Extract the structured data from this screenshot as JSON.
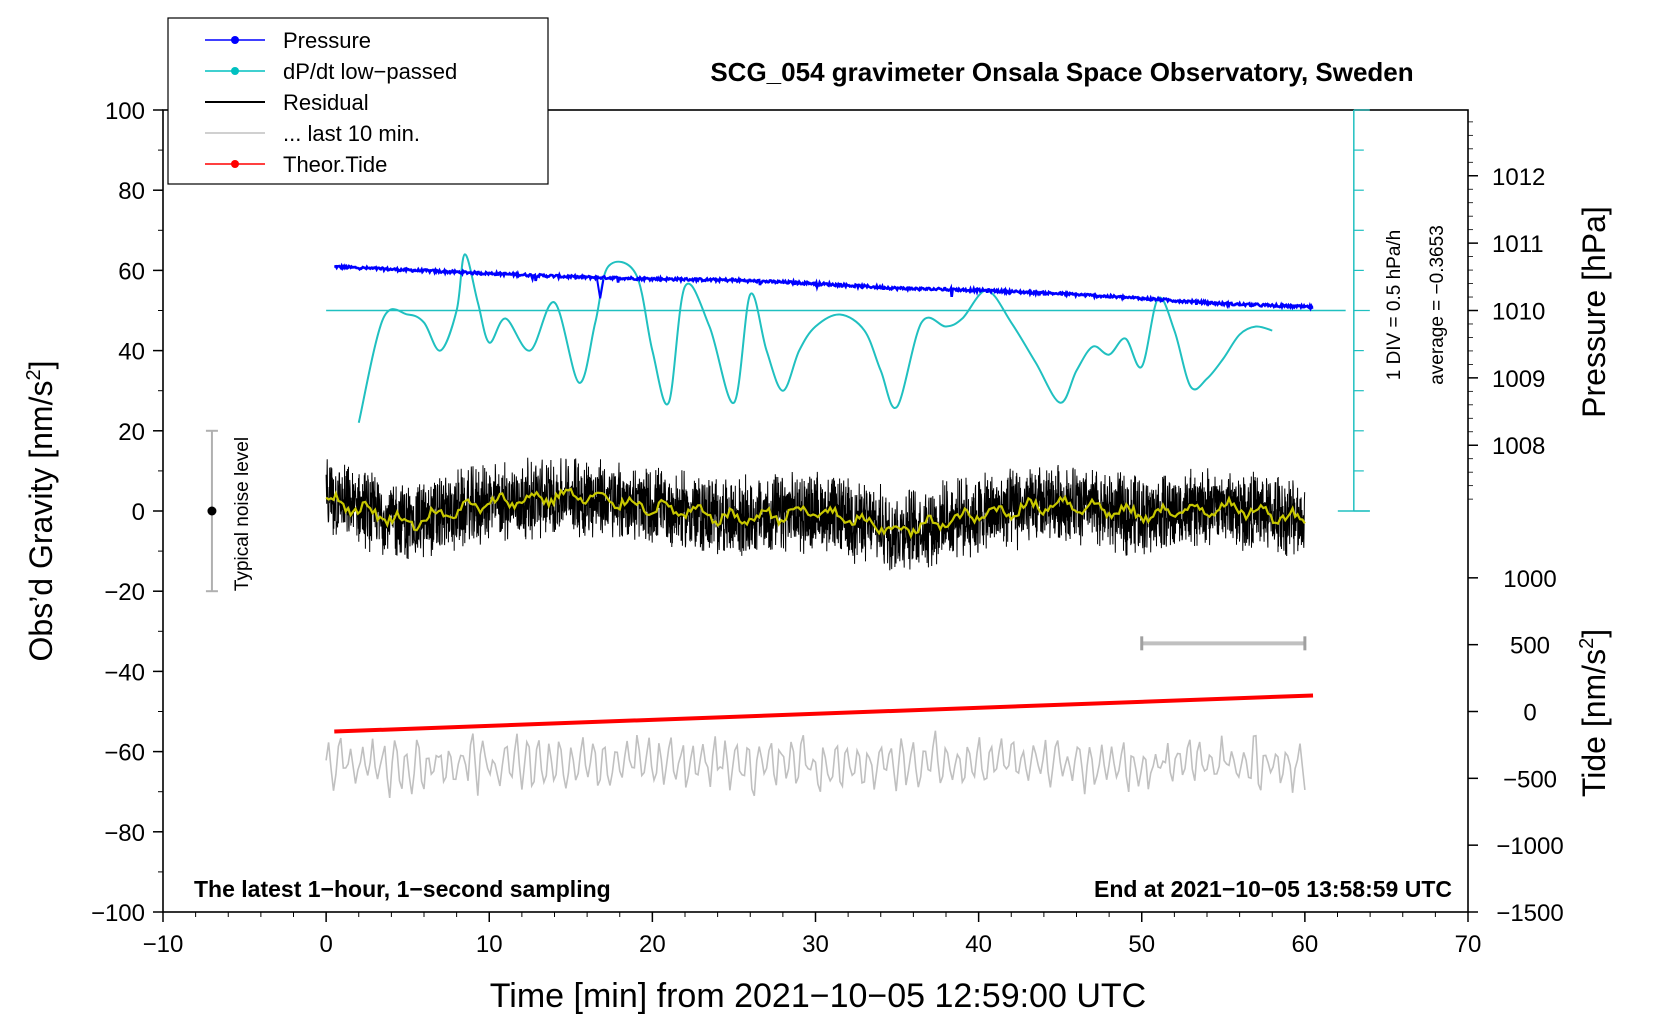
{
  "chart_data": {
    "type": "line",
    "title": "SCG_054 gravimeter Onsala Space Observatory, Sweden",
    "xlabel": "Time [min] from 2021−10−05 12:59:00 UTC",
    "ylabel_main": "Obs’d Gravity [nm/s",
    "ylabel_sup": "2",
    "ylabel_close": "]",
    "ylabel_pressure": "Pressure [hPa]",
    "ylabel_tide": "Tide [nm/s",
    "ylabel_tide_sup": "2",
    "ylabel_tide_close": "]",
    "xlim": [
      -10,
      70
    ],
    "ylim": [
      -100,
      100
    ],
    "pressure_lim": [
      1007,
      1013
    ],
    "tide_lim": [
      -1500,
      1500
    ],
    "x_ticks": [
      -10,
      0,
      10,
      20,
      30,
      40,
      50,
      60,
      70
    ],
    "x_tick_labels": [
      "−10",
      "0",
      "10",
      "20",
      "30",
      "40",
      "50",
      "60",
      "70"
    ],
    "y_ticks": [
      100,
      80,
      60,
      40,
      20,
      0,
      -20,
      -40,
      -60,
      -80,
      -100
    ],
    "y_tick_labels": [
      "100",
      "80",
      "60",
      "40",
      "20",
      "0",
      "−20",
      "−40",
      "−60",
      "−80",
      "−100"
    ],
    "pressure_ticks": [
      1008,
      1009,
      1010,
      1011,
      1012
    ],
    "pressure_tick_labels": [
      "1008",
      "1009",
      "1010",
      "1011",
      "1012"
    ],
    "tide_ticks": [
      1000,
      500,
      0,
      -500,
      -1000,
      -1500
    ],
    "tide_tick_labels": [
      "1000",
      "500",
      "0",
      "−500",
      "−1000",
      "−1500"
    ],
    "legend": [
      {
        "label": "Pressure",
        "color": "#0000ff",
        "marker": true
      },
      {
        "label": "dP/dt low−passed",
        "color": "#00c0c0",
        "marker": true
      },
      {
        "label": "Residual",
        "color": "#000000",
        "marker": false
      },
      {
        "label": "... last 10 min.",
        "color": "#c0c0c0",
        "marker": false
      },
      {
        "label": "Theor.Tide",
        "color": "#ff0000",
        "marker": true
      }
    ],
    "colors": {
      "pressure": "#0000ff",
      "dpdt": "#20c0c0",
      "residual": "#000000",
      "residual_smooth": "#c8c800",
      "last10": "#c0c0c0",
      "tide": "#ff0000"
    },
    "series": {
      "pressure_hpa": {
        "x": [
          0.5,
          5,
          10,
          15,
          20,
          25,
          30,
          35,
          40,
          45,
          50,
          55,
          60.5
        ],
        "values": [
          1010.65,
          1010.6,
          1010.55,
          1010.5,
          1010.47,
          1010.45,
          1010.4,
          1010.33,
          1010.3,
          1010.25,
          1010.18,
          1010.1,
          1010.05
        ]
      },
      "dpdt_lowpassed": {
        "x": [
          2,
          3.5,
          5,
          6,
          7,
          8,
          8.5,
          9.3,
          10,
          11,
          12.5,
          14,
          15.5,
          16.5,
          17.3,
          19,
          20,
          21,
          22,
          23.5,
          25,
          26,
          27,
          28,
          29,
          30,
          31.5,
          33,
          34,
          35,
          36.5,
          38,
          39,
          40.5,
          42,
          43.5,
          45,
          46,
          47,
          48,
          49,
          50,
          51,
          52,
          53,
          54,
          55,
          56,
          57,
          58
        ],
        "values": [
          22,
          48,
          49,
          47,
          40,
          50,
          64,
          52,
          42,
          48,
          40,
          52,
          32,
          47,
          61,
          59,
          40,
          27,
          56,
          46,
          27,
          54,
          40,
          30,
          40,
          46,
          49,
          45,
          35,
          26,
          47,
          46,
          48,
          55,
          47,
          37,
          27,
          35,
          41,
          39,
          43,
          36,
          53,
          45,
          31,
          33,
          38,
          44,
          46,
          45
        ]
      },
      "dpdt_zero_line": 50,
      "dpdt_div_label": "1 DIV = 0.5 hPa/h",
      "dpdt_average_label": "average = −0.3653",
      "residual_center_trend": {
        "x": [
          0,
          5,
          10,
          15,
          20,
          25,
          30,
          35,
          40,
          45,
          50,
          55,
          60
        ],
        "values": [
          3,
          -3,
          2,
          4,
          1,
          -2,
          0,
          -5,
          -1,
          2,
          -1,
          1,
          -2
        ]
      },
      "theoretical_tide_nm_s2": {
        "x": [
          0.5,
          60.5
        ],
        "values": [
          -55,
          -46
        ]
      },
      "last10_center": -63
    },
    "noise_bar": {
      "x": -7,
      "center": 0,
      "low": -20,
      "high": 20,
      "label": "Typical noise level"
    },
    "last10_bar": {
      "x_start": 50,
      "x_end": 60,
      "y": -33
    },
    "footer_left": "The latest 1−hour, 1−second sampling",
    "footer_right": "End at 2021−10−05 13:58:59 UTC"
  }
}
